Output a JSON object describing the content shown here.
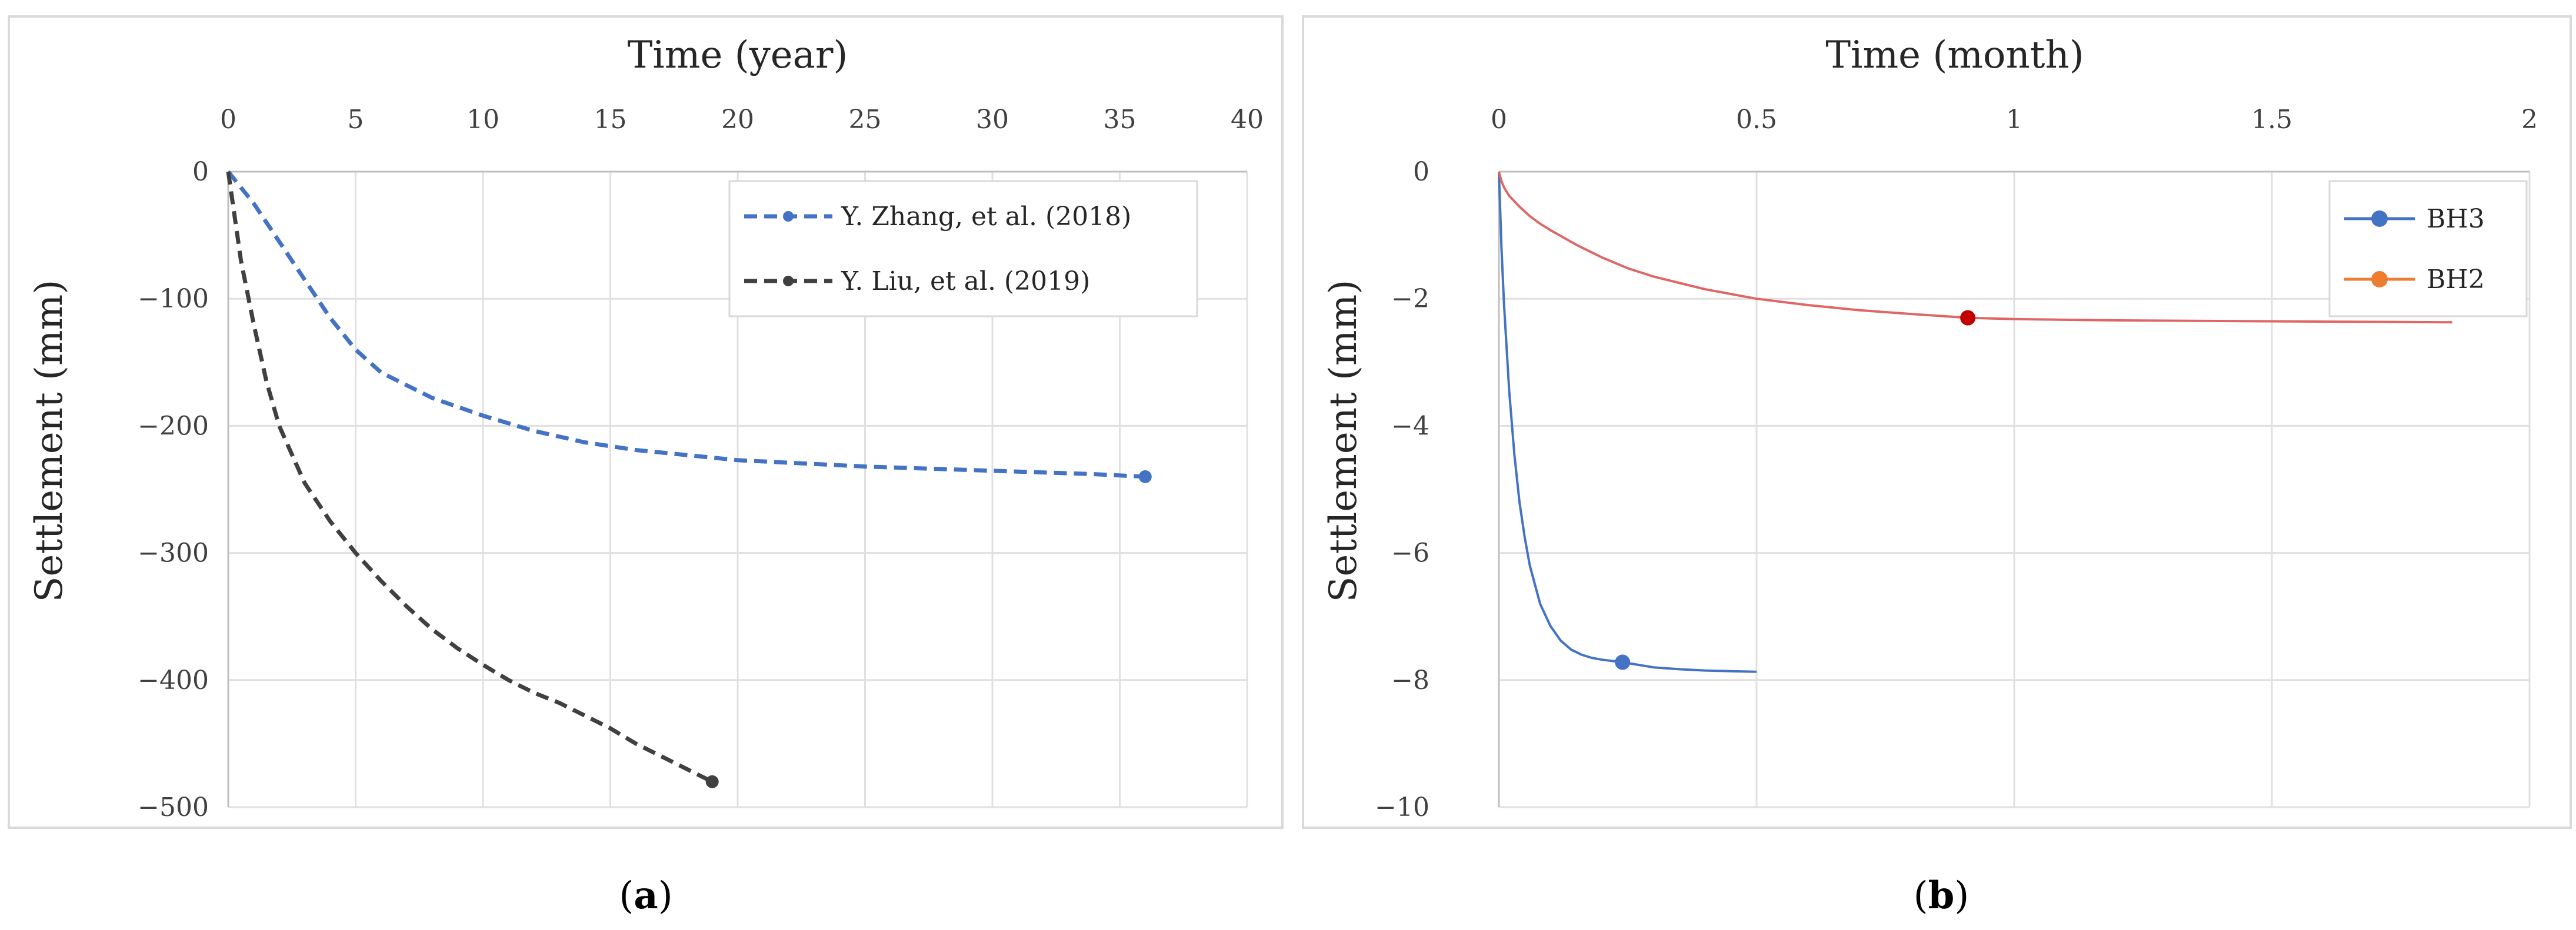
{
  "chart_data": [
    {
      "type": "line",
      "panel": "a",
      "title": "",
      "xlabel": "Time (year)",
      "ylabel": "Settlement (mm)",
      "xlim": [
        0,
        40
      ],
      "ylim": [
        -500,
        0
      ],
      "x_ticks": [
        0,
        5,
        10,
        15,
        20,
        25,
        30,
        35,
        40
      ],
      "y_ticks": [
        0,
        -100,
        -200,
        -300,
        -400,
        -500
      ],
      "x_axis_position": "top",
      "legend_position": "top-right",
      "grid": true,
      "series": [
        {
          "name": "Y. Zhang, et al. (2018)",
          "color": "#4472C4",
          "style": "dashed",
          "x": [
            0,
            1,
            2,
            3,
            4,
            5,
            6,
            8,
            10,
            12,
            14,
            16,
            18,
            20,
            22,
            25,
            28,
            31,
            34,
            36
          ],
          "y": [
            0,
            -25,
            -55,
            -85,
            -115,
            -140,
            -158,
            -178,
            -192,
            -204,
            -213,
            -219,
            -223,
            -227,
            -229,
            -232,
            -234,
            -236,
            -238,
            -240
          ]
        },
        {
          "name": "Y. Liu, et al. (2019)",
          "color": "#404040",
          "style": "dashed",
          "x": [
            0,
            0.5,
            1,
            1.5,
            2,
            3,
            4,
            5,
            6,
            7,
            8,
            9,
            10,
            11,
            12,
            13,
            14,
            15,
            16,
            17,
            18,
            19
          ],
          "y": [
            0,
            -70,
            -120,
            -165,
            -200,
            -245,
            -275,
            -300,
            -322,
            -342,
            -360,
            -375,
            -388,
            -400,
            -410,
            -418,
            -428,
            -438,
            -450,
            -460,
            -470,
            -480
          ]
        }
      ]
    },
    {
      "type": "line",
      "panel": "b",
      "title": "",
      "xlabel": "Time (month)",
      "ylabel": "Settlement (mm)",
      "xlim": [
        0,
        2
      ],
      "ylim": [
        -10,
        0
      ],
      "x_ticks": [
        "0",
        "0.5",
        "1",
        "1.5",
        "2"
      ],
      "y_ticks": [
        0,
        -2,
        -4,
        -6,
        -8,
        -10
      ],
      "x_axis_position": "top",
      "legend_position": "top-right",
      "grid": true,
      "series": [
        {
          "name": "BH3",
          "color": "#4472C4",
          "line_color": "#4472C4",
          "style": "solid",
          "marker_x": 0.24,
          "x": [
            0,
            0.005,
            0.01,
            0.02,
            0.03,
            0.04,
            0.05,
            0.06,
            0.08,
            0.1,
            0.12,
            0.14,
            0.16,
            0.18,
            0.2,
            0.22,
            0.24,
            0.27,
            0.3,
            0.35,
            0.4,
            0.45,
            0.5
          ],
          "y": [
            0,
            -1.2,
            -2.1,
            -3.45,
            -4.45,
            -5.2,
            -5.75,
            -6.2,
            -6.8,
            -7.15,
            -7.38,
            -7.52,
            -7.6,
            -7.65,
            -7.68,
            -7.7,
            -7.72,
            -7.76,
            -7.8,
            -7.83,
            -7.85,
            -7.86,
            -7.87
          ]
        },
        {
          "name": "BH2",
          "color": "#ED7D31",
          "line_color": "#E06666",
          "style": "solid",
          "marker_color": "#C00000",
          "marker_x": 0.91,
          "x": [
            0,
            0.005,
            0.01,
            0.02,
            0.04,
            0.06,
            0.08,
            0.1,
            0.15,
            0.2,
            0.25,
            0.3,
            0.4,
            0.5,
            0.6,
            0.7,
            0.8,
            0.91,
            1.0,
            1.2,
            1.4,
            1.6,
            1.85
          ],
          "y": [
            0,
            -0.15,
            -0.25,
            -0.38,
            -0.55,
            -0.7,
            -0.82,
            -0.92,
            -1.15,
            -1.35,
            -1.52,
            -1.65,
            -1.85,
            -2.0,
            -2.1,
            -2.18,
            -2.24,
            -2.3,
            -2.32,
            -2.34,
            -2.35,
            -2.36,
            -2.37
          ]
        }
      ]
    }
  ],
  "captions": [
    {
      "open": "(",
      "letter": "a",
      "close": ")"
    },
    {
      "open": "(",
      "letter": "b",
      "close": ")"
    }
  ]
}
